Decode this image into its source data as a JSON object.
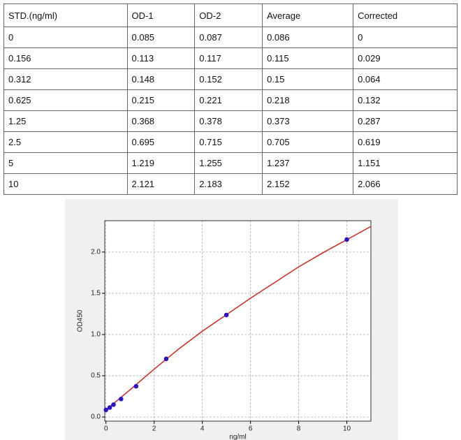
{
  "table": {
    "header": [
      "STD.(ng/ml)",
      "OD-1",
      "OD-2",
      "Average",
      "Corrected"
    ],
    "rows": [
      [
        "0",
        "0.085",
        "0.087",
        "0.086",
        "0"
      ],
      [
        "0.156",
        "0.113",
        "0.117",
        "0.115",
        "0.029"
      ],
      [
        "0.312",
        "0.148",
        "0.152",
        "0.15",
        "0.064"
      ],
      [
        "0.625",
        "0.215",
        "0.221",
        "0.218",
        "0.132"
      ],
      [
        "1.25",
        "0.368",
        "0.378",
        "0.373",
        "0.287"
      ],
      [
        "2.5",
        "0.695",
        "0.715",
        "0.705",
        "0.619"
      ],
      [
        "5",
        "1.219",
        "1.255",
        "1.237",
        "1.151"
      ],
      [
        "10",
        "2.121",
        "2.183",
        "2.152",
        "2.066"
      ]
    ]
  },
  "chart_data": {
    "type": "scatter",
    "xlabel": "ng/ml",
    "ylabel": "OD450",
    "xlim": [
      -0.05,
      11
    ],
    "ylim": [
      -0.05,
      2.38
    ],
    "xticks": [
      0,
      2,
      4,
      6,
      8,
      10
    ],
    "yticks": [
      {
        "value": 0,
        "label": "0.0"
      },
      {
        "value": 0.5,
        "label": "0.5"
      },
      {
        "value": 1,
        "label": "1.0"
      },
      {
        "value": 1.5,
        "label": "1.5"
      },
      {
        "value": 2,
        "label": "2.0"
      }
    ],
    "grid": true,
    "series": [
      {
        "type": "scatter",
        "color": "#2a14c8",
        "x": [
          0,
          0.156,
          0.312,
          0.625,
          1.25,
          2.5,
          5,
          10
        ],
        "values": [
          0.086,
          0.115,
          0.15,
          0.218,
          0.373,
          0.705,
          1.237,
          2.152
        ]
      },
      {
        "type": "line",
        "color": "#d4281e",
        "x": [
          0,
          1,
          2,
          3,
          4,
          5,
          6,
          7,
          8,
          9,
          10,
          11
        ],
        "values": [
          0.086,
          0.33,
          0.58,
          0.82,
          1.04,
          1.24,
          1.44,
          1.63,
          1.82,
          1.99,
          2.15,
          2.31
        ]
      }
    ]
  }
}
